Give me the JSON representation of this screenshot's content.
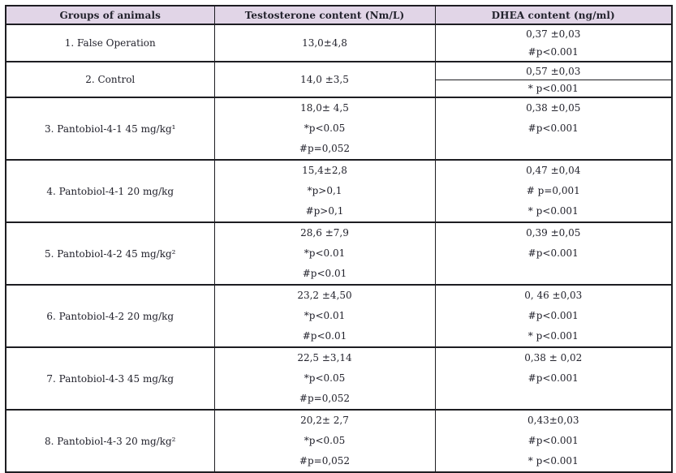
{
  "colors": {
    "header_bg": "#e1d5e7",
    "border": "#1d1d22",
    "text": "#22222c"
  },
  "table": {
    "headers": [
      "Groups of animals",
      "Testosterone content (Nm/L)",
      "DHEA content (ng/ml)"
    ],
    "rows": [
      {
        "group": "1. False Operation",
        "testosterone": [
          "13,0±4,8"
        ],
        "dhea": [
          "0,37 ±0,03",
          "#p<0.001"
        ],
        "dhea_split": false
      },
      {
        "group": "2. Control",
        "testosterone": [
          "14,0 ±3,5"
        ],
        "dhea": [
          "0,57 ±0,03",
          "* p<0.001"
        ],
        "dhea_split": true
      },
      {
        "group": "3. Pantobiol-4-1 45 mg/kg¹",
        "testosterone": [
          "18,0± 4,5",
          "*p<0.05",
          "#p=0,052"
        ],
        "dhea": [
          "0,38 ±0,05",
          "#p<0.001"
        ],
        "dhea_split": false
      },
      {
        "group": "4. Pantobiol-4-1 20 mg/kg",
        "testosterone": [
          "15,4±2,8",
          "*p>0,1",
          "#p>0,1"
        ],
        "dhea": [
          "0,47 ±0,04",
          "# p=0,001",
          "* p<0.001"
        ],
        "dhea_split": false
      },
      {
        "group": "5. Pantobiol-4-2 45 mg/kg²",
        "testosterone": [
          "28,6 ±7,9",
          "*p<0.01",
          "#p<0.01"
        ],
        "dhea": [
          "0,39 ±0,05",
          "#p<0.001"
        ],
        "dhea_split": false
      },
      {
        "group": "6. Pantobiol-4-2 20 mg/kg",
        "testosterone": [
          "23,2 ±4,50",
          "*p<0.01",
          "#p<0.01"
        ],
        "dhea": [
          "0, 46 ±0,03",
          "#p<0.001",
          "* p<0.001"
        ],
        "dhea_split": false
      },
      {
        "group": "7. Pantobiol-4-3 45 mg/kg",
        "testosterone": [
          "22,5 ±3,14",
          "*p<0.05",
          "#p=0,052"
        ],
        "dhea": [
          "0,38 ± 0,02",
          "#p<0.001"
        ],
        "dhea_split": false
      },
      {
        "group": "8. Pantobiol-4-3 20 mg/kg²",
        "testosterone": [
          "20,2± 2,7",
          "*p<0.05",
          "#p=0,052"
        ],
        "dhea": [
          "0,43±0,03",
          "#p<0.001",
          "* p<0.001"
        ],
        "dhea_split": false
      }
    ]
  }
}
